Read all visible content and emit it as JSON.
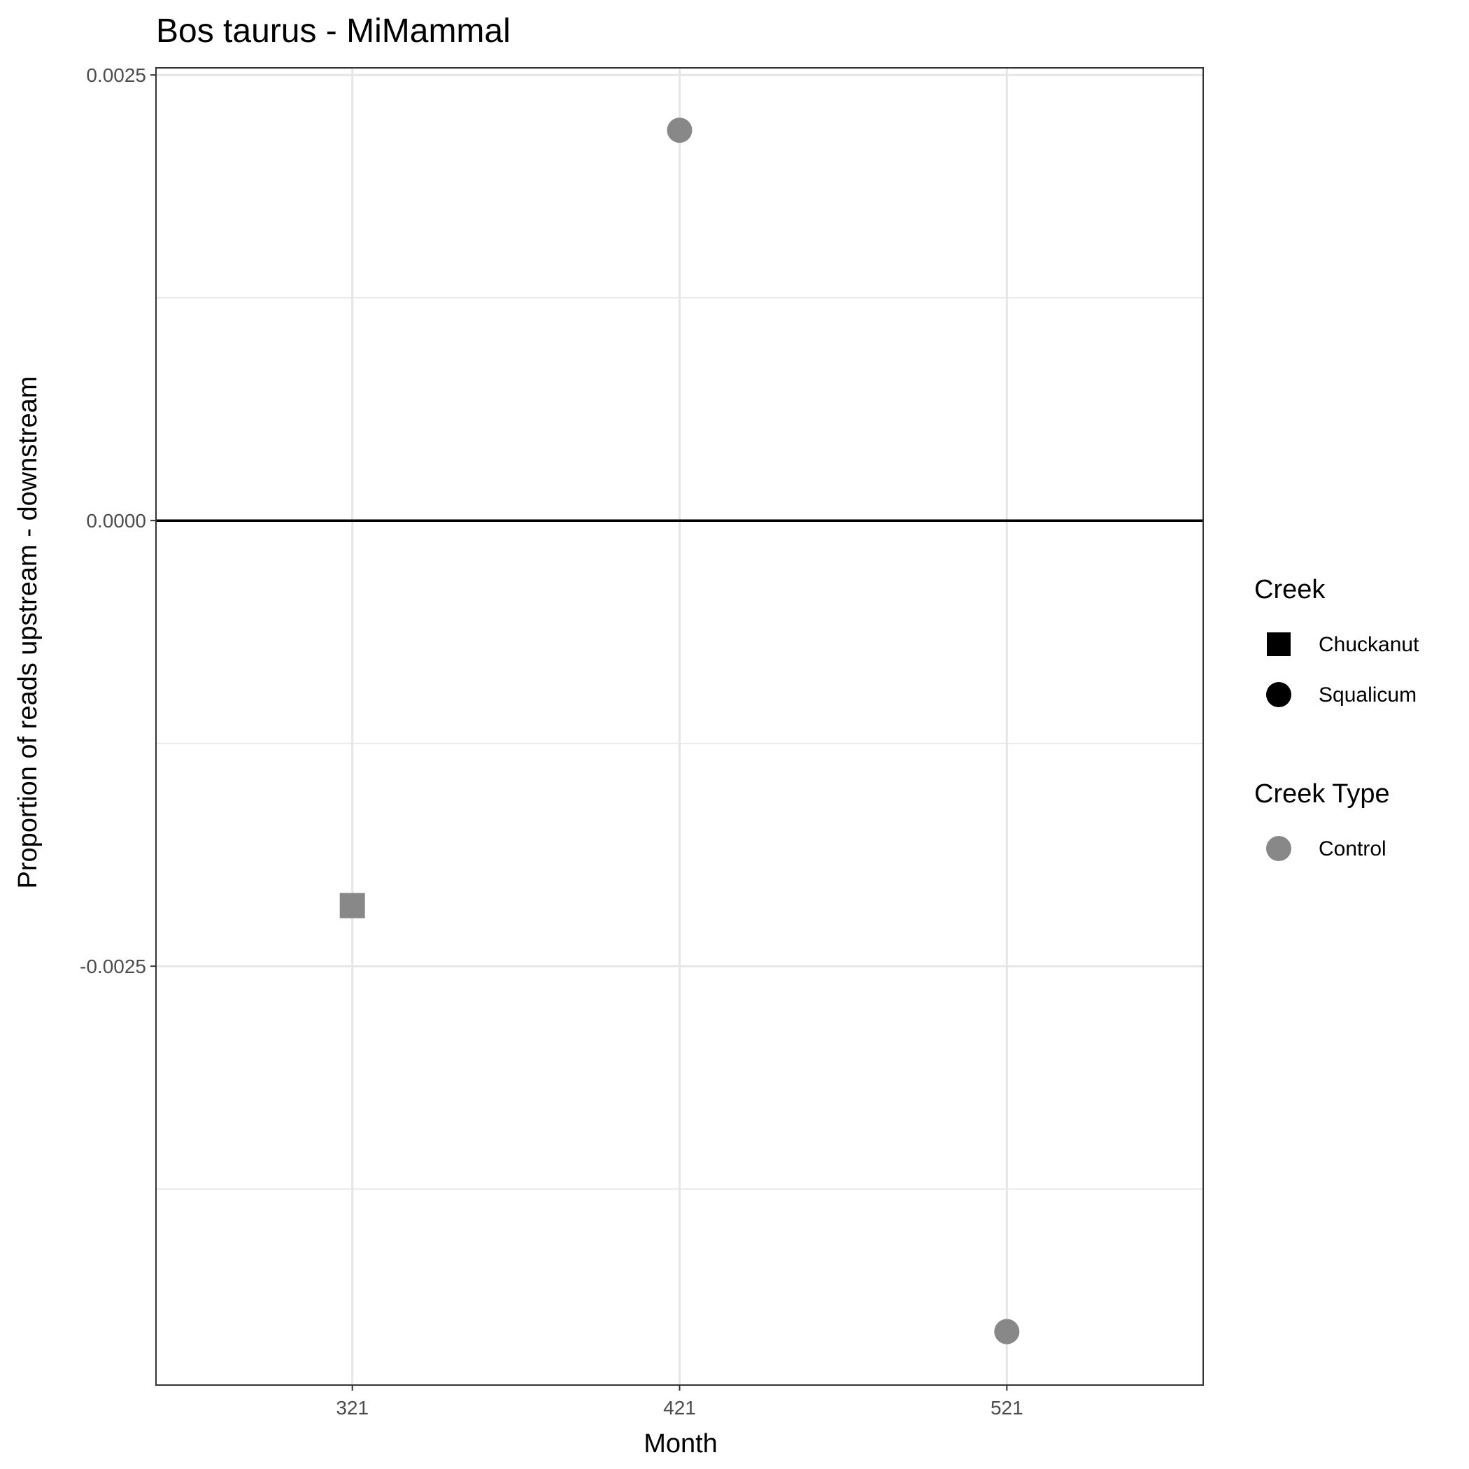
{
  "chart_data": {
    "type": "scatter",
    "title": "Bos taurus - MiMammal",
    "xlabel": "Month",
    "ylabel": "Proportion of reads upstream - downstream",
    "categories": [
      "321",
      "421",
      "521"
    ],
    "y_ticks": [
      {
        "value": 0.0025,
        "label": "0.0025"
      },
      {
        "value": 0.0,
        "label": "0.0000"
      },
      {
        "value": -0.0025,
        "label": "-0.0025"
      }
    ],
    "ylim": [
      -0.00485,
      0.00254
    ],
    "grid": true,
    "reference_line_y": 0,
    "points": [
      {
        "x": "321",
        "y": -0.00216,
        "creek": "Chuckanut",
        "creek_type": "Control"
      },
      {
        "x": "421",
        "y": 0.00219,
        "creek": "Squalicum",
        "creek_type": "Control"
      },
      {
        "x": "521",
        "y": -0.00455,
        "creek": "Squalicum",
        "creek_type": "Control"
      }
    ],
    "legend_placement": "right",
    "legends": [
      {
        "title": "Creek",
        "entries": [
          {
            "label": "Chuckanut",
            "shape": "square",
            "color": "#000000"
          },
          {
            "label": "Squalicum",
            "shape": "circle",
            "color": "#000000"
          }
        ]
      },
      {
        "title": "Creek Type",
        "entries": [
          {
            "label": "Control",
            "shape": "circle",
            "color": "#888888"
          }
        ]
      }
    ],
    "colors": {
      "Control": "#888888",
      "grid": "#e6e6e6",
      "axis": "#333333",
      "reference_line": "#000000"
    }
  }
}
